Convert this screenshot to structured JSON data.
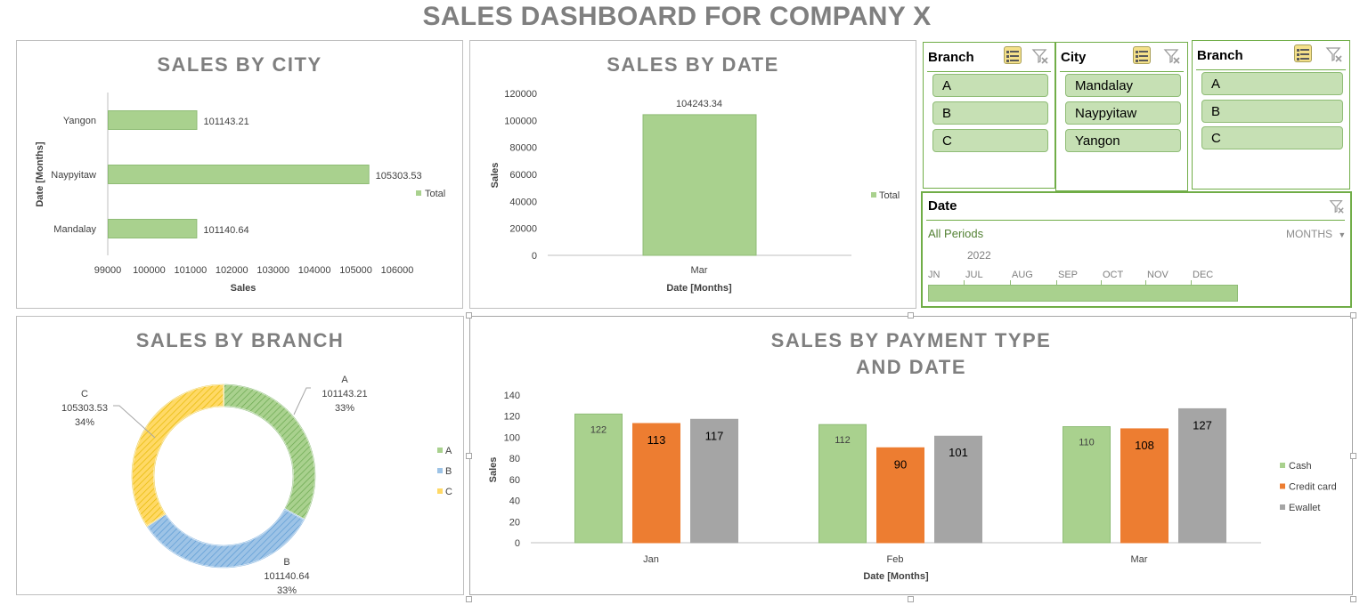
{
  "dashboard": {
    "title": "SALES DASHBOARD FOR COMPANY X"
  },
  "colors": {
    "green": "#a9d18e",
    "green_border": "#8fbc76",
    "orange": "#ed7d31",
    "gray": "#a5a5a5",
    "blue": "#9dc3e6",
    "yellow": "#ffd966",
    "slicer_accent": "#70ad47"
  },
  "slicers": {
    "branch1": {
      "name": "Branch",
      "items": [
        "A",
        "B",
        "C"
      ]
    },
    "city": {
      "name": "City",
      "items": [
        "Mandalay",
        "Naypyitaw",
        "Yangon"
      ]
    },
    "branch2": {
      "name": "Branch",
      "items": [
        "A",
        "B",
        "C"
      ]
    },
    "date": {
      "name": "Date",
      "all_periods": "All Periods",
      "level": "MONTHS",
      "year": "2022",
      "months": [
        "JN",
        "JUL",
        "AUG",
        "SEP",
        "OCT",
        "NOV",
        "DEC"
      ]
    }
  },
  "chart_data": [
    {
      "id": "city",
      "type": "bar",
      "orientation": "horizontal",
      "title": "SALES BY CITY",
      "categories": [
        "Yangon",
        "Naypyitaw",
        "Mandalay"
      ],
      "series": [
        {
          "name": "Total",
          "values": [
            101143.21,
            105303.53,
            101140.64
          ]
        }
      ],
      "value_labels": [
        "101143.21",
        "105303.53",
        "101140.64"
      ],
      "xlabel": "Sales",
      "ylabel": "Date [Months]",
      "xlim": [
        99000,
        106000
      ],
      "x_ticks": [
        "99000",
        "100000",
        "101000",
        "102000",
        "103000",
        "104000",
        "105000",
        "106000"
      ],
      "legend": "right"
    },
    {
      "id": "date",
      "type": "bar",
      "title": "SALES BY DATE",
      "categories": [
        "Mar"
      ],
      "series": [
        {
          "name": "Total",
          "values": [
            104243.34
          ]
        }
      ],
      "value_labels": [
        "104243.34"
      ],
      "xlabel": "Date [Months]",
      "ylabel": "Sales",
      "ylim": [
        0,
        120000
      ],
      "y_ticks": [
        "0",
        "20000",
        "40000",
        "60000",
        "80000",
        "100000",
        "120000"
      ],
      "legend": "right"
    },
    {
      "id": "branch",
      "type": "pie",
      "variant": "doughnut",
      "title": "SALES BY BRANCH",
      "categories": [
        "A",
        "B",
        "C"
      ],
      "values": [
        101143.21,
        101140.64,
        105303.53
      ],
      "value_labels": [
        "101143.21",
        "101140.64",
        "105303.53"
      ],
      "percent_labels": [
        "33%",
        "33%",
        "34%"
      ],
      "legend": "right"
    },
    {
      "id": "payment",
      "type": "bar",
      "title_lines": [
        "SALES BY PAYMENT TYPE",
        "AND DATE"
      ],
      "categories": [
        "Jan",
        "Feb",
        "Mar"
      ],
      "series": [
        {
          "name": "Cash",
          "values": [
            122,
            112,
            110
          ]
        },
        {
          "name": "Credit card",
          "values": [
            113,
            90,
            108
          ]
        },
        {
          "name": "Ewallet",
          "values": [
            117,
            101,
            127
          ]
        }
      ],
      "xlabel": "Date [Months]",
      "ylabel": "Sales",
      "ylim": [
        0,
        140
      ],
      "y_ticks": [
        "0",
        "20",
        "40",
        "60",
        "80",
        "100",
        "120",
        "140"
      ],
      "legend": "right"
    }
  ]
}
